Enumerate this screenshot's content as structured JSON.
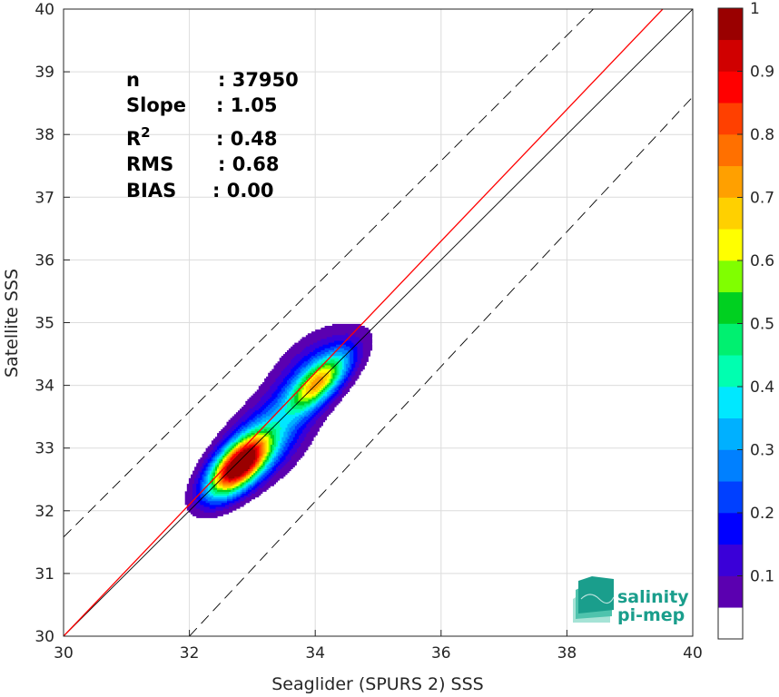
{
  "chart_data": {
    "type": "heatmap",
    "xlabel": "Seaglider (SPURS 2) SSS",
    "ylabel": "Satellite SSS",
    "xlim": [
      30,
      40
    ],
    "ylim": [
      30,
      40
    ],
    "xticks": [
      "30",
      "32",
      "34",
      "36",
      "38",
      "40"
    ],
    "yticks": [
      "30",
      "31",
      "32",
      "33",
      "34",
      "35",
      "36",
      "37",
      "38",
      "39",
      "40"
    ],
    "grid": true,
    "reference_lines": {
      "identity": {
        "from": [
          30,
          30
        ],
        "to": [
          40,
          40
        ],
        "color": "#000000",
        "style": "solid"
      },
      "regression_fit": {
        "slope": 1.05,
        "bias": 0.0,
        "color": "#ff0000",
        "style": "solid"
      },
      "upper_bound": {
        "from": [
          30,
          31.58
        ],
        "to": [
          40,
          41.58
        ],
        "color": "#000000",
        "style": "dashed"
      },
      "lower_bound": {
        "from": [
          32,
          30
        ],
        "to": [
          40,
          38.6
        ],
        "color": "#000000",
        "style": "dashed"
      }
    },
    "density_peaks": [
      {
        "x": 32.78,
        "y": 32.72,
        "peak": 1.0
      },
      {
        "x": 34.05,
        "y": 34.05,
        "peak": 0.65
      }
    ],
    "stats": [
      {
        "label": "n",
        "value": ": 37950"
      },
      {
        "label": "Slope",
        "value": ": 1.05"
      },
      {
        "label": "R",
        "sup": "2",
        "value": ": 0.48"
      },
      {
        "label": "RMS",
        "value": ": 0.68"
      },
      {
        "label": "BIAS",
        "value": ": 0.00"
      }
    ],
    "colorbar": {
      "range": [
        0,
        1
      ],
      "tick_labels": [
        "0.1",
        "0.2",
        "0.3",
        "0.4",
        "0.5",
        "0.6",
        "0.7",
        "0.8",
        "0.9",
        "1"
      ],
      "levels": [
        {
          "from": 0.05,
          "to": 0.1,
          "color": "#5b00b0"
        },
        {
          "from": 0.1,
          "to": 0.15,
          "color": "#3a00d8"
        },
        {
          "from": 0.15,
          "to": 0.2,
          "color": "#0000ff"
        },
        {
          "from": 0.2,
          "to": 0.25,
          "color": "#0040ff"
        },
        {
          "from": 0.25,
          "to": 0.3,
          "color": "#0080ff"
        },
        {
          "from": 0.3,
          "to": 0.35,
          "color": "#00b0ff"
        },
        {
          "from": 0.35,
          "to": 0.4,
          "color": "#00e8ff"
        },
        {
          "from": 0.4,
          "to": 0.45,
          "color": "#00ffb0"
        },
        {
          "from": 0.45,
          "to": 0.5,
          "color": "#00f070"
        },
        {
          "from": 0.5,
          "to": 0.55,
          "color": "#00d020"
        },
        {
          "from": 0.55,
          "to": 0.6,
          "color": "#80ff00"
        },
        {
          "from": 0.6,
          "to": 0.65,
          "color": "#ffff00"
        },
        {
          "from": 0.65,
          "to": 0.7,
          "color": "#ffd000"
        },
        {
          "from": 0.7,
          "to": 0.75,
          "color": "#ffa000"
        },
        {
          "from": 0.75,
          "to": 0.8,
          "color": "#ff7000"
        },
        {
          "from": 0.8,
          "to": 0.85,
          "color": "#ff4000"
        },
        {
          "from": 0.85,
          "to": 0.9,
          "color": "#ff0000"
        },
        {
          "from": 0.9,
          "to": 0.95,
          "color": "#d00000"
        },
        {
          "from": 0.95,
          "to": 1.0,
          "color": "#9a0000"
        }
      ]
    }
  },
  "logo": {
    "line1": "salinity",
    "line2": "pi-mep"
  }
}
